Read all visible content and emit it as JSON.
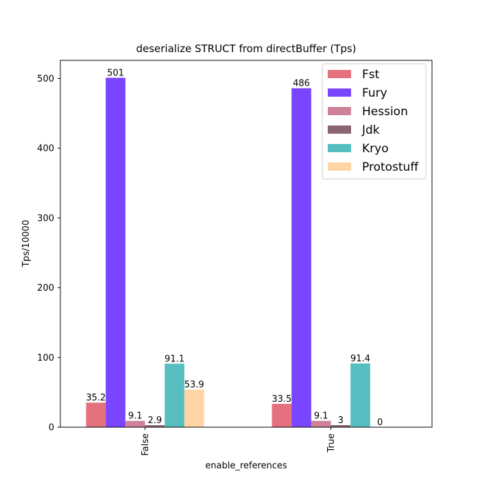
{
  "chart_data": {
    "type": "bar",
    "title": "deserialize STRUCT from directBuffer (Tps)",
    "xlabel": "enable_references",
    "ylabel": "Tps/10000",
    "categories": [
      "False",
      "True"
    ],
    "ylim": [
      0,
      526
    ],
    "yticks": [
      0,
      100,
      200,
      300,
      400,
      500
    ],
    "legend_position": "upper-right",
    "grid": false,
    "series": [
      {
        "name": "Fst",
        "color": "#e5707e",
        "values": [
          35.2,
          33.5
        ],
        "labels": [
          "35.2",
          "33.5"
        ]
      },
      {
        "name": "Fury",
        "color": "#7a45ff",
        "values": [
          501,
          486
        ],
        "labels": [
          "501",
          "486"
        ]
      },
      {
        "name": "Hession",
        "color": "#cf8297",
        "values": [
          9.1,
          9.1
        ],
        "labels": [
          "9.1",
          "9.1"
        ]
      },
      {
        "name": "Jdk",
        "color": "#8c6670",
        "values": [
          2.9,
          3
        ],
        "labels": [
          "2.9",
          "3"
        ]
      },
      {
        "name": "Kryo",
        "color": "#56bec1",
        "values": [
          91.1,
          91.4
        ],
        "labels": [
          "91.1",
          "91.4"
        ]
      },
      {
        "name": "Protostuff",
        "color": "#ffd5a6",
        "values": [
          53.9,
          0
        ],
        "labels": [
          "53.9",
          "0"
        ]
      }
    ]
  }
}
